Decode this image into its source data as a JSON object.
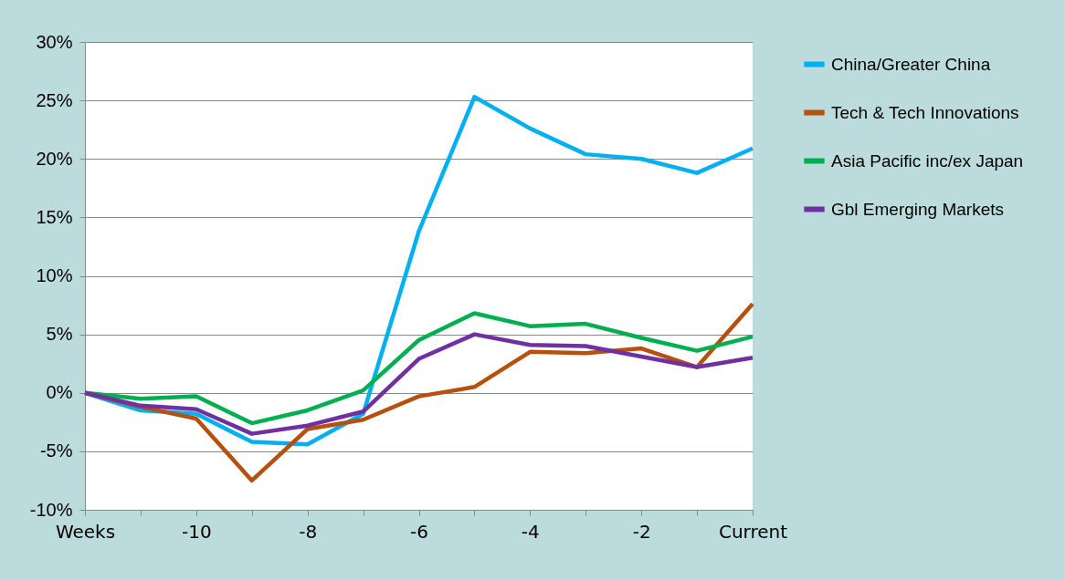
{
  "chart_data": {
    "type": "line",
    "categories": [
      "Weeks",
      null,
      "-10",
      null,
      "-8",
      null,
      "-6",
      null,
      "-4",
      null,
      "-2",
      null,
      "Current"
    ],
    "series": [
      {
        "name": "China/Greater China",
        "color": "#00b0f0",
        "values": [
          0,
          -1.5,
          -1.8,
          -4.2,
          -4.4,
          -1.8,
          13.8,
          25.3,
          22.6,
          20.4,
          20.0,
          18.8,
          20.9
        ]
      },
      {
        "name": "Tech & Tech Innovations",
        "color": "#b5500f",
        "values": [
          0,
          -1.2,
          -2.2,
          -7.5,
          -3.1,
          -2.3,
          -0.3,
          0.5,
          3.5,
          3.4,
          3.8,
          2.2,
          7.6
        ]
      },
      {
        "name": "Asia Pacific inc/ex Japan",
        "color": "#00b050",
        "values": [
          0,
          -0.5,
          -0.3,
          -2.6,
          -1.5,
          0.2,
          4.5,
          6.8,
          5.7,
          5.9,
          4.7,
          3.6,
          4.8
        ]
      },
      {
        "name": "Gbl Emerging Markets",
        "color": "#7030a0",
        "values": [
          0,
          -1.1,
          -1.4,
          -3.5,
          -2.8,
          -1.6,
          2.9,
          5.0,
          4.1,
          4.0,
          3.1,
          2.2,
          3.0
        ]
      }
    ],
    "ylim": [
      -10,
      30
    ],
    "yticks": [
      {
        "value": -10,
        "label": "-10%"
      },
      {
        "value": -5,
        "label": "-5%"
      },
      {
        "value": 0,
        "label": "0%"
      },
      {
        "value": 5,
        "label": "5%"
      },
      {
        "value": 10,
        "label": "10%"
      },
      {
        "value": 15,
        "label": "15%"
      },
      {
        "value": 20,
        "label": "20%"
      },
      {
        "value": 25,
        "label": "25%"
      },
      {
        "value": 30,
        "label": "30%"
      }
    ],
    "grid": "y",
    "legend": "right",
    "marker": "none",
    "line_style": "solid"
  }
}
